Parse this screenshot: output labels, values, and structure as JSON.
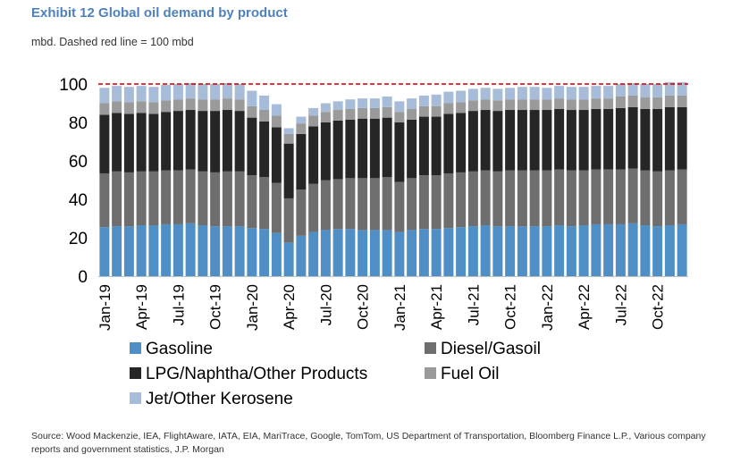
{
  "header": {
    "title": "Exhibit 12 Global oil demand by product",
    "subtitle": "mbd. Dashed red line = 100 mbd"
  },
  "footer": {
    "source": "Source: Wood Mackenzie, IEA, FlightAware, IATA, EIA, MariTrace, Google, TomTom, US Department of Transportation, Bloomberg Finance L.P., Various company reports and government statistics, J.P. Morgan"
  },
  "chart_data": {
    "type": "bar",
    "stacked": true,
    "title": "Exhibit 12 Global oil demand by product",
    "subtitle": "mbd. Dashed red line = 100 mbd",
    "ylim": [
      0,
      100
    ],
    "yticks": [
      0,
      20,
      40,
      60,
      80,
      100
    ],
    "reference_line": {
      "value": 100,
      "style": "dashed",
      "color": "#c00000"
    },
    "legend_position": "bottom",
    "tick_labels": [
      {
        "label": "Jan-19",
        "index": 0
      },
      {
        "label": "Apr-19",
        "index": 3
      },
      {
        "label": "Jul-19",
        "index": 6
      },
      {
        "label": "Oct-19",
        "index": 9
      },
      {
        "label": "Jan-20",
        "index": 12
      },
      {
        "label": "Apr-20",
        "index": 15
      },
      {
        "label": "Jul-20",
        "index": 18
      },
      {
        "label": "Oct-20",
        "index": 21
      },
      {
        "label": "Jan-21",
        "index": 24
      },
      {
        "label": "Apr-21",
        "index": 27
      },
      {
        "label": "Jul-21",
        "index": 30
      },
      {
        "label": "Oct-21",
        "index": 33
      },
      {
        "label": "Jan-22",
        "index": 36
      },
      {
        "label": "Apr-22",
        "index": 39
      },
      {
        "label": "Jul-22",
        "index": 42
      },
      {
        "label": "Oct-22",
        "index": 45
      }
    ],
    "categories": [
      "Jan-19",
      "Feb-19",
      "Mar-19",
      "Apr-19",
      "May-19",
      "Jun-19",
      "Jul-19",
      "Aug-19",
      "Sep-19",
      "Oct-19",
      "Nov-19",
      "Dec-19",
      "Jan-20",
      "Feb-20",
      "Mar-20",
      "Apr-20",
      "May-20",
      "Jun-20",
      "Jul-20",
      "Aug-20",
      "Sep-20",
      "Oct-20",
      "Nov-20",
      "Dec-20",
      "Jan-21",
      "Feb-21",
      "Mar-21",
      "Apr-21",
      "May-21",
      "Jun-21",
      "Jul-21",
      "Aug-21",
      "Sep-21",
      "Oct-21",
      "Nov-21",
      "Dec-21",
      "Jan-22",
      "Feb-22",
      "Mar-22",
      "Apr-22",
      "May-22",
      "Jun-22",
      "Jul-22",
      "Aug-22",
      "Sep-22",
      "Oct-22",
      "Nov-22",
      "Dec-22"
    ],
    "series": [
      {
        "name": "Gasoline",
        "color": "#4f8fc6",
        "values": [
          25.5,
          26,
          26,
          26.5,
          26.5,
          27,
          27,
          27.5,
          26.5,
          26,
          26,
          26,
          25,
          24.5,
          22.5,
          17.5,
          21,
          23,
          24,
          24.5,
          24.5,
          24,
          24,
          24,
          23,
          24,
          24.5,
          24.5,
          25,
          25.5,
          26,
          26.5,
          26,
          26,
          26,
          26,
          26,
          26.5,
          26,
          26.5,
          27,
          27,
          27,
          27.5,
          26.5,
          26,
          26.5,
          27
        ]
      },
      {
        "name": "Diesel/Gasoil",
        "color": "#6e6e6e",
        "values": [
          28,
          28.5,
          28,
          28,
          28,
          28,
          28,
          28,
          28,
          28,
          28.5,
          28.5,
          27.5,
          27,
          26,
          23,
          24,
          25,
          26,
          26,
          26.5,
          27,
          27,
          27.5,
          26,
          27,
          28,
          28,
          28.5,
          28.5,
          28.5,
          28.5,
          28.5,
          29,
          29,
          29,
          29,
          29,
          29,
          28.5,
          28.5,
          28.5,
          28.5,
          28.5,
          28.5,
          28.5,
          28.5,
          28.5
        ]
      },
      {
        "name": "LPG/Naphtha/Other Products",
        "color": "#262626",
        "values": [
          30.5,
          30.5,
          30.5,
          30.5,
          30,
          30.5,
          31,
          31,
          31.5,
          32,
          32,
          31.5,
          30,
          29,
          29,
          28.5,
          29,
          30,
          30,
          30.5,
          30.5,
          31,
          31,
          31,
          31,
          30.5,
          30.5,
          30.5,
          31,
          31,
          31.5,
          31.5,
          31.5,
          31.5,
          31.5,
          31.5,
          31.5,
          31.5,
          31.5,
          31.5,
          31.5,
          31.5,
          32,
          32,
          32,
          32.5,
          33,
          32.5
        ]
      },
      {
        "name": "Fuel Oil",
        "color": "#9a9a9a",
        "values": [
          6,
          6,
          6,
          6,
          6,
          6,
          6,
          6,
          6,
          6,
          6,
          6,
          6,
          6,
          6,
          5,
          5.5,
          5.5,
          5.5,
          5.5,
          5.5,
          5.5,
          5.5,
          5.5,
          5.5,
          5.5,
          5.5,
          5.5,
          5.5,
          5.5,
          5.5,
          5.5,
          5.5,
          5.5,
          5.5,
          5.5,
          5.5,
          5.5,
          5.5,
          5.5,
          5.5,
          5.5,
          6,
          6,
          6,
          6,
          6,
          6
        ]
      },
      {
        "name": "Jet/Other Kerosene",
        "color": "#a6bcd8",
        "values": [
          8,
          8,
          8,
          8,
          8,
          8,
          8,
          8,
          8,
          8,
          8,
          8,
          8,
          7.5,
          6,
          3,
          3.5,
          4,
          4.5,
          4.5,
          5,
          5,
          5,
          5.5,
          5.5,
          5.5,
          5.5,
          6,
          6,
          6,
          6,
          6,
          6,
          6,
          6.5,
          6.5,
          6,
          6.5,
          6.5,
          6.5,
          6.5,
          6.5,
          6.5,
          6.5,
          7,
          7,
          7,
          7
        ]
      }
    ]
  }
}
